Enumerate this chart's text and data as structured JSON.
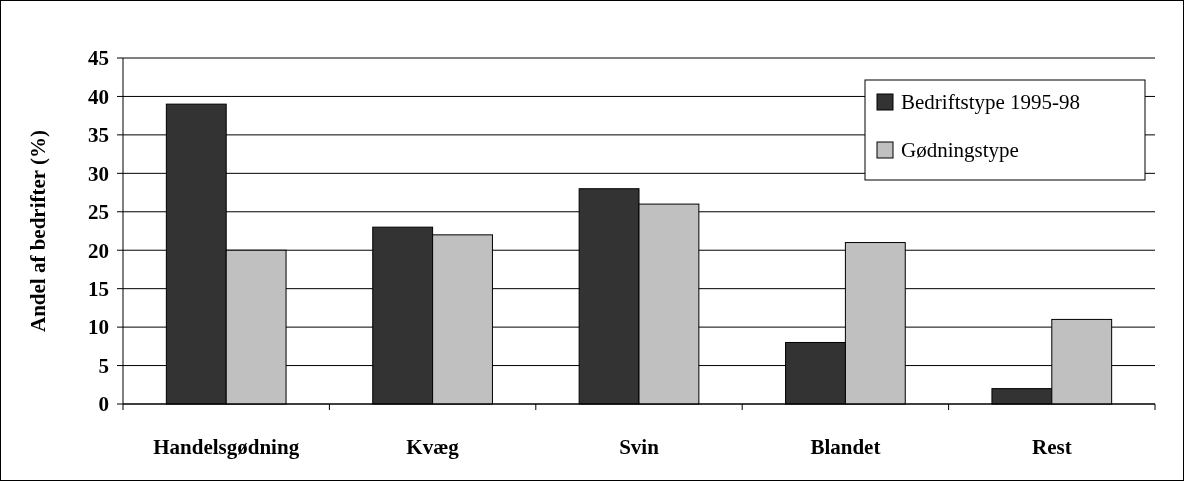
{
  "chart_data": {
    "type": "bar",
    "ylabel": "Andel af bedrifter (%)",
    "categories": [
      "Handelsgødning",
      "Kvæg",
      "Svin",
      "Blandet",
      "Rest"
    ],
    "series": [
      {
        "name": "Bedriftstype 1995-98",
        "color": "#333333",
        "values": [
          39,
          23,
          28,
          8,
          2
        ]
      },
      {
        "name": "Gødningstype",
        "color": "#c0c0c0",
        "values": [
          20,
          22,
          26,
          21,
          11
        ]
      }
    ],
    "ylim": [
      0,
      45
    ],
    "yticks": [
      0,
      5,
      10,
      15,
      20,
      25,
      30,
      35,
      40,
      45
    ],
    "grid": "y",
    "legend": "top right"
  }
}
